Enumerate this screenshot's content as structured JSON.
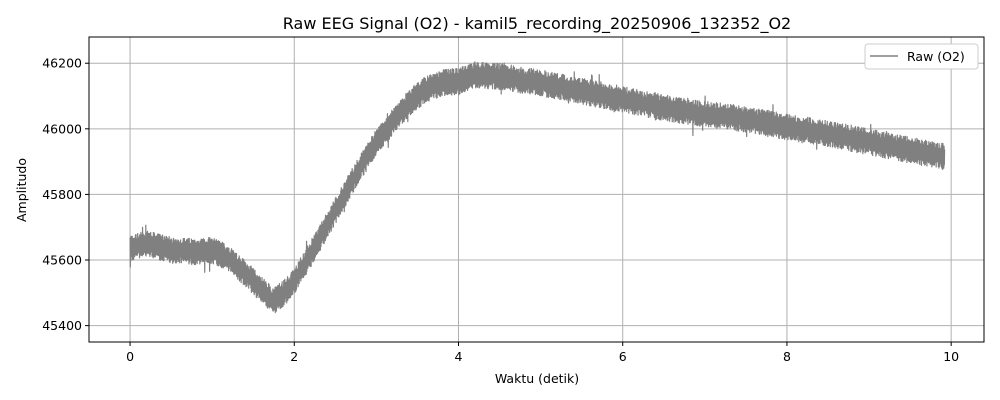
{
  "chart_data": {
    "type": "line",
    "title": "Raw EEG Signal (O2) - kamil5_recording_20250906_132352_O2",
    "xlabel": "Waktu (detik)",
    "ylabel": "Amplitudo",
    "xlim": [
      -0.5,
      10.4
    ],
    "ylim": [
      45350,
      46280
    ],
    "xticks": [
      0,
      2,
      4,
      6,
      8,
      10
    ],
    "yticks": [
      45400,
      45600,
      45800,
      46000,
      46200
    ],
    "grid": true,
    "legend_position": "top-right",
    "series": [
      {
        "name": "Raw (O2)",
        "color": "#808080",
        "x_range": [
          0,
          9.92
        ],
        "trend": {
          "x": [
            0,
            0.2,
            0.5,
            0.8,
            1.0,
            1.2,
            1.4,
            1.6,
            1.75,
            1.9,
            2.0,
            2.2,
            2.4,
            2.6,
            2.8,
            3.0,
            3.2,
            3.4,
            3.6,
            3.8,
            4.0,
            4.2,
            4.5,
            5.0,
            5.5,
            6.0,
            6.5,
            7.0,
            7.5,
            8.0,
            8.5,
            9.0,
            9.5,
            9.92
          ],
          "y": [
            45635,
            45650,
            45630,
            45625,
            45630,
            45605,
            45560,
            45510,
            45475,
            45505,
            45535,
            45620,
            45705,
            45795,
            45880,
            45960,
            46020,
            46080,
            46120,
            46140,
            46145,
            46165,
            46160,
            46140,
            46115,
            46090,
            46065,
            46045,
            46030,
            46005,
            45985,
            45960,
            45935,
            45915
          ]
        },
        "band_halfwidth": 40
      }
    ]
  }
}
